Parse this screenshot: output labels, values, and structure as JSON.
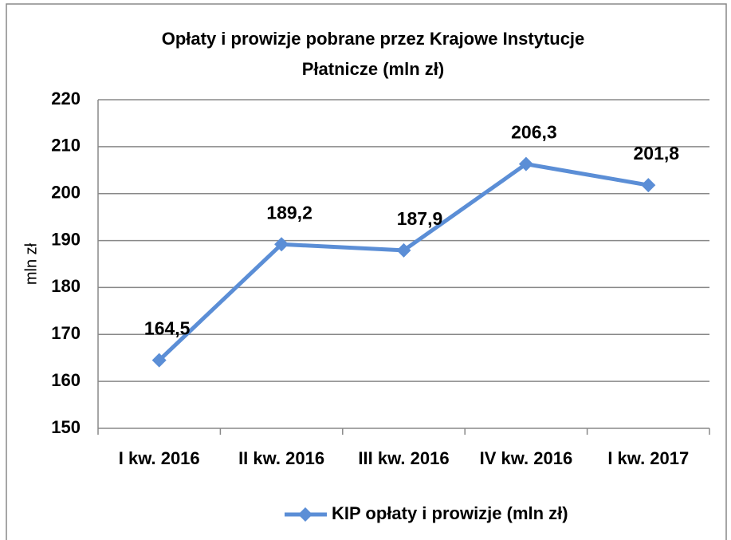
{
  "chart_data": {
    "type": "line",
    "title": [
      "Opłaty i prowizje pobrane przez Krajowe Instytucje",
      "Płatnicze (mln zł)"
    ],
    "y_label": "mln zł",
    "categories": [
      "I kw. 2016",
      "II kw. 2016",
      "III kw. 2016",
      "IV kw. 2016",
      "I kw. 2017"
    ],
    "series": [
      {
        "name": "KIP opłaty i prowizje (mln zł)",
        "color": "#5b8ed6",
        "values": [
          164.5,
          189.2,
          187.9,
          206.3,
          201.8
        ],
        "value_labels": [
          "164,5",
          "189,2",
          "187,9",
          "206,3",
          "201,8"
        ]
      }
    ],
    "ylim": [
      150,
      220
    ],
    "yticks": [
      150,
      160,
      170,
      180,
      190,
      200,
      210,
      220
    ],
    "grid": true,
    "legend": "bottom"
  }
}
